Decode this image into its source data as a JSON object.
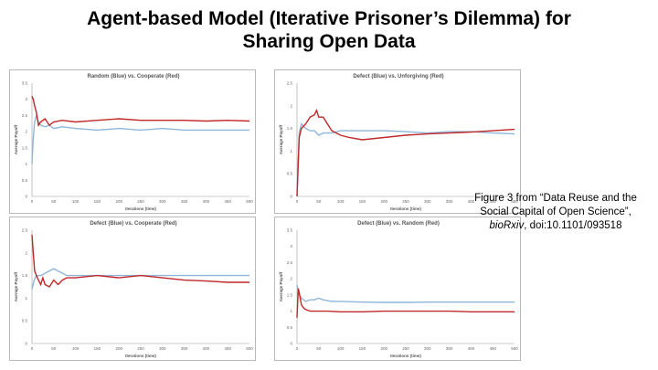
{
  "slide": {
    "title_line1": "Agent-based Model (Iterative Prisoner’s Dilemma) for",
    "title_line2": "Sharing Open Data",
    "caption_line1": "Figure 3 from “Data Reuse and the",
    "caption_line2": "Social Capital of Open Science”,",
    "caption_journal": "bioRxiv",
    "caption_doi": ", doi:10.1101/093518"
  },
  "colors": {
    "blue": "#8fb6d8",
    "red": "#c0282a"
  },
  "chart_data": [
    {
      "type": "line",
      "title": "Random (Blue) vs. Cooperate (Red)",
      "xlabel": "Iterations (time)",
      "ylabel": "Average Payoff",
      "xlim": [
        0,
        500
      ],
      "ylim": [
        0,
        3.5
      ],
      "xticks": [
        0,
        50,
        100,
        150,
        200,
        250,
        300,
        350,
        400,
        450,
        500
      ],
      "yticks": [
        0,
        0.5,
        1,
        1.5,
        2,
        2.5,
        3,
        3.5
      ],
      "series": [
        {
          "color": "blue",
          "x": [
            0,
            3,
            6,
            10,
            15,
            20,
            30,
            40,
            50,
            70,
            100,
            150,
            200,
            250,
            300,
            350,
            400,
            450,
            500
          ],
          "y": [
            1.0,
            1.8,
            2.3,
            2.5,
            2.3,
            2.2,
            2.15,
            2.2,
            2.1,
            2.15,
            2.1,
            2.05,
            2.1,
            2.05,
            2.1,
            2.05,
            2.05,
            2.05,
            2.05
          ]
        },
        {
          "color": "red",
          "x": [
            0,
            3,
            6,
            10,
            15,
            20,
            30,
            40,
            50,
            70,
            100,
            150,
            200,
            250,
            300,
            350,
            400,
            450,
            500
          ],
          "y": [
            3.1,
            3.0,
            2.8,
            2.6,
            2.2,
            2.3,
            2.4,
            2.2,
            2.3,
            2.35,
            2.3,
            2.35,
            2.4,
            2.35,
            2.35,
            2.35,
            2.33,
            2.35,
            2.33
          ]
        }
      ]
    },
    {
      "type": "line",
      "title": "Defect (Blue) vs. Unforgiving (Red)",
      "xlabel": "Iterations (time)",
      "ylabel": "Average Payoff",
      "xlim": [
        0,
        500
      ],
      "ylim": [
        0,
        2.5
      ],
      "xticks": [
        0,
        50,
        100,
        150,
        200,
        250,
        300,
        350,
        400,
        450,
        500
      ],
      "yticks": [
        0,
        0.5,
        1,
        1.5,
        2,
        2.5
      ],
      "series": [
        {
          "color": "blue",
          "x": [
            0,
            5,
            10,
            20,
            30,
            40,
            50,
            60,
            80,
            100,
            150,
            200,
            250,
            300,
            350,
            400,
            450,
            500
          ],
          "y": [
            0.0,
            1.4,
            1.6,
            1.5,
            1.45,
            1.45,
            1.35,
            1.4,
            1.4,
            1.45,
            1.45,
            1.45,
            1.43,
            1.4,
            1.43,
            1.43,
            1.4,
            1.38
          ]
        },
        {
          "color": "red",
          "x": [
            0,
            5,
            10,
            20,
            30,
            40,
            45,
            50,
            60,
            70,
            80,
            100,
            120,
            150,
            200,
            250,
            300,
            350,
            400,
            450,
            500
          ],
          "y": [
            0.0,
            1.3,
            1.5,
            1.6,
            1.75,
            1.8,
            1.9,
            1.75,
            1.75,
            1.6,
            1.45,
            1.35,
            1.3,
            1.25,
            1.3,
            1.35,
            1.38,
            1.4,
            1.42,
            1.45,
            1.48
          ]
        }
      ]
    },
    {
      "type": "line",
      "title": "Defect (Blue) vs. Cooperate (Red)",
      "xlabel": "Iterations (time)",
      "ylabel": "Average Payoff",
      "xlim": [
        0,
        500
      ],
      "ylim": [
        0,
        2.5
      ],
      "xticks": [
        0,
        50,
        100,
        150,
        200,
        250,
        300,
        350,
        400,
        450,
        500
      ],
      "yticks": [
        0,
        0.5,
        1,
        1.5,
        2,
        2.5
      ],
      "series": [
        {
          "color": "blue",
          "x": [
            0,
            5,
            10,
            20,
            30,
            40,
            50,
            60,
            70,
            80,
            100,
            150,
            200,
            250,
            300,
            350,
            400,
            450,
            500
          ],
          "y": [
            1.2,
            1.4,
            1.5,
            1.5,
            1.55,
            1.6,
            1.65,
            1.6,
            1.55,
            1.5,
            1.5,
            1.5,
            1.5,
            1.5,
            1.5,
            1.5,
            1.5,
            1.5,
            1.5
          ]
        },
        {
          "color": "red",
          "x": [
            0,
            3,
            6,
            10,
            15,
            20,
            25,
            30,
            40,
            50,
            60,
            70,
            80,
            100,
            150,
            200,
            250,
            300,
            350,
            400,
            450,
            500
          ],
          "y": [
            2.4,
            2.0,
            1.6,
            1.5,
            1.4,
            1.3,
            1.45,
            1.3,
            1.25,
            1.4,
            1.3,
            1.4,
            1.45,
            1.45,
            1.5,
            1.45,
            1.5,
            1.45,
            1.4,
            1.38,
            1.35,
            1.35
          ]
        }
      ]
    },
    {
      "type": "line",
      "title": "Defect (Blue) vs. Random (Red)",
      "xlabel": "Iterations (time)",
      "ylabel": "Average Payoff",
      "xlim": [
        0,
        500
      ],
      "ylim": [
        0,
        3.5
      ],
      "xticks": [
        0,
        50,
        100,
        150,
        200,
        250,
        300,
        350,
        400,
        450,
        500
      ],
      "yticks": [
        0,
        0.5,
        1,
        1.5,
        2,
        2.5,
        3,
        3.5
      ],
      "series": [
        {
          "color": "blue",
          "x": [
            0,
            5,
            10,
            20,
            30,
            40,
            50,
            60,
            80,
            100,
            150,
            200,
            250,
            300,
            350,
            400,
            450,
            500
          ],
          "y": [
            1.8,
            1.5,
            1.4,
            1.3,
            1.35,
            1.35,
            1.4,
            1.35,
            1.3,
            1.3,
            1.28,
            1.27,
            1.27,
            1.28,
            1.28,
            1.28,
            1.28,
            1.28
          ]
        },
        {
          "color": "red",
          "x": [
            0,
            3,
            6,
            10,
            15,
            20,
            30,
            40,
            50,
            70,
            100,
            150,
            200,
            250,
            300,
            350,
            400,
            450,
            500
          ],
          "y": [
            0.8,
            1.7,
            1.5,
            1.2,
            1.1,
            1.05,
            1.0,
            1.0,
            1.0,
            1.0,
            0.98,
            0.98,
            1.0,
            1.0,
            1.0,
            1.0,
            0.98,
            0.98,
            0.98
          ]
        }
      ]
    }
  ]
}
